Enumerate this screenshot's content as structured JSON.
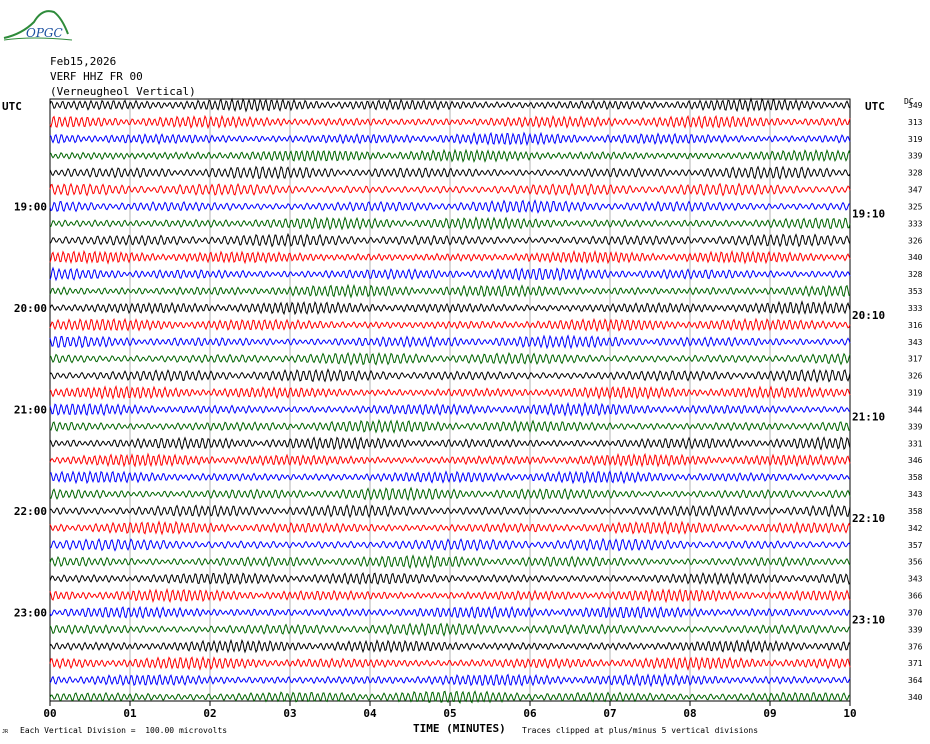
{
  "header": {
    "logo_text": "OPGC",
    "date": "Feb15,2026",
    "station": "VERF HHZ FR 00",
    "location": "(Verneugheol Vertical)"
  },
  "utc_left": "UTC",
  "utc_right": "UTC",
  "dc_header": "DC",
  "footer": {
    "xlabel": "TIME (MINUTES)",
    "scale_note": "Each Vertical Division =  100.00 microvolts",
    "clip_note": "Traces clipped at plus/minus 5 vertical divisions",
    "corner_mark": "JR"
  },
  "colors": {
    "black": "#000000",
    "red": "#ff0000",
    "blue": "#0000ff",
    "green": "#006400"
  },
  "chart_data": {
    "type": "line",
    "title": "",
    "xlabel": "TIME (MINUTES)",
    "ylabel": "",
    "x_ticks": [
      "00",
      "01",
      "02",
      "03",
      "04",
      "05",
      "06",
      "07",
      "08",
      "09",
      "10"
    ],
    "xlim": [
      0,
      10
    ],
    "minutes_per_trace": 10,
    "trace_colors_cycle": [
      "#000000",
      "#ff0000",
      "#0000ff",
      "#006400"
    ],
    "left_time_labels": [
      {
        "trace_index": 6,
        "label": "19:00"
      },
      {
        "trace_index": 12,
        "label": "20:00"
      },
      {
        "trace_index": 18,
        "label": "21:00"
      },
      {
        "trace_index": 24,
        "label": "22:00"
      },
      {
        "trace_index": 30,
        "label": "23:00"
      }
    ],
    "right_time_labels": [
      {
        "trace_index": 7,
        "label": "19:10"
      },
      {
        "trace_index": 13,
        "label": "20:10"
      },
      {
        "trace_index": 19,
        "label": "21:10"
      },
      {
        "trace_index": 25,
        "label": "22:10"
      },
      {
        "trace_index": 31,
        "label": "23:10"
      }
    ],
    "dc_offsets": [
      349,
      313,
      319,
      339,
      328,
      347,
      325,
      333,
      326,
      340,
      328,
      353,
      333,
      316,
      343,
      317,
      326,
      319,
      344,
      339,
      331,
      346,
      358,
      343,
      358,
      342,
      357,
      356,
      343,
      366,
      370,
      339,
      376,
      371,
      364,
      340
    ],
    "grid": true
  }
}
